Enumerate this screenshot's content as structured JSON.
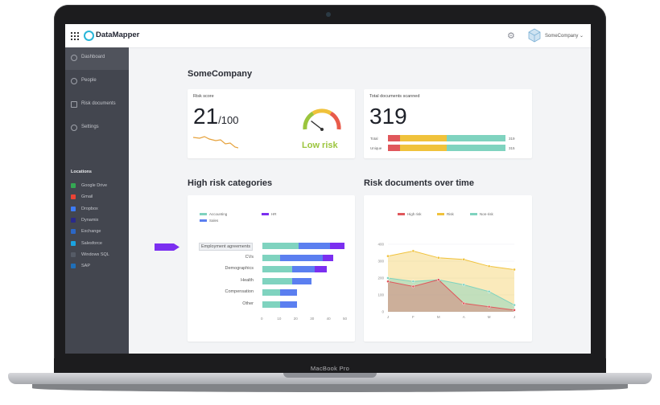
{
  "app": {
    "name": "DataMapper",
    "company_selector": "SomeCompany ⌄"
  },
  "device_label": "MacBook Pro",
  "sidebar": {
    "nav": [
      {
        "label": "Dashboard",
        "active": true
      },
      {
        "label": "People"
      },
      {
        "label": "Risk documents"
      },
      {
        "label": "Settings"
      }
    ],
    "locations_title": "Locations",
    "locations": [
      {
        "label": "Google Drive",
        "color": "#34a853"
      },
      {
        "label": "Gmail",
        "color": "#ea4335"
      },
      {
        "label": "Dropbox",
        "color": "#3d7cf5"
      },
      {
        "label": "Dynamix",
        "color": "#2a2a8a"
      },
      {
        "label": "Exchange",
        "color": "#2b67c6"
      },
      {
        "label": "Salesforce",
        "color": "#1ba3e0"
      },
      {
        "label": "Windows SQL",
        "color": "#555b66"
      },
      {
        "label": "SAP",
        "color": "#1f6fb8"
      }
    ]
  },
  "main": {
    "company_title": "SomeCompany",
    "risk_score": {
      "title": "Risk score",
      "value": "21",
      "suffix": "/100",
      "status": "Low risk",
      "gauge_fraction": 0.21
    },
    "documents_scanned": {
      "title": "Total documents scanned",
      "value": "319",
      "rows": [
        {
          "label": "Total",
          "count": "319",
          "segments": [
            0.1,
            0.4,
            0.5
          ]
        },
        {
          "label": "Unique",
          "count": "315",
          "segments": [
            0.1,
            0.4,
            0.5
          ]
        }
      ]
    },
    "high_risk_title": "High risk categories",
    "risk_over_time_title": "Risk documents over time"
  },
  "colors": {
    "high": "#e0575b",
    "risk": "#f0c23b",
    "nonrisk": "#7fd3bf",
    "accounting": "#7fd3bf",
    "sales": "#5b7ff0",
    "hr": "#7b2ff0"
  },
  "chart_data": [
    {
      "type": "bar",
      "orientation": "horizontal",
      "stacked": true,
      "categories": [
        "Employment agreements",
        "CVs",
        "Demographics",
        "Health",
        "Compensation",
        "Other"
      ],
      "series": [
        {
          "name": "Accounting",
          "values": [
            22,
            11,
            18,
            18,
            11,
            11
          ]
        },
        {
          "name": "Sales",
          "values": [
            19,
            26,
            14,
            12,
            10,
            10
          ]
        },
        {
          "name": "HR",
          "values": [
            9,
            6,
            7,
            0,
            0,
            0
          ]
        }
      ],
      "xticks": [
        "0",
        "10",
        "20",
        "30",
        "40",
        "50"
      ],
      "xlim": [
        0,
        50
      ],
      "legend": "top-left"
    },
    {
      "type": "area",
      "stacked": false,
      "categories": [
        "J",
        "F",
        "M",
        "A",
        "M",
        "J"
      ],
      "series": [
        {
          "name": "High risk",
          "values": [
            180,
            150,
            190,
            50,
            30,
            10
          ]
        },
        {
          "name": "Risk",
          "values": [
            330,
            360,
            320,
            310,
            270,
            250
          ]
        },
        {
          "name": "Non-risk",
          "values": [
            200,
            180,
            190,
            160,
            120,
            40
          ]
        }
      ],
      "yticks": [
        "0",
        "100",
        "200",
        "300",
        "400"
      ],
      "ylim": [
        0,
        400
      ],
      "legend": "top"
    }
  ]
}
